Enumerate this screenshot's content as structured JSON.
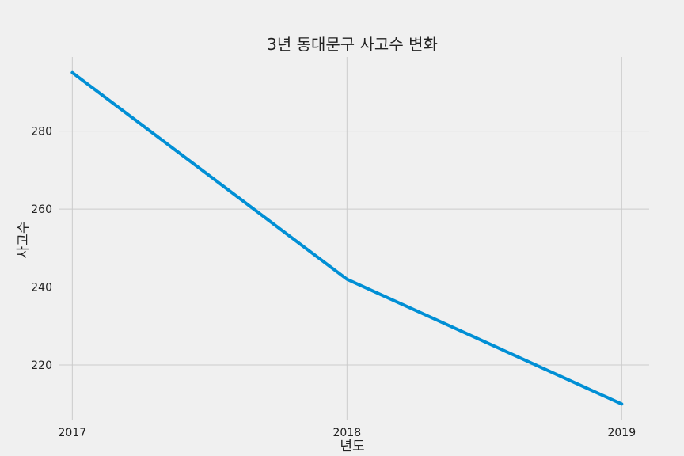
{
  "chart_data": {
    "type": "line",
    "title": "3년 동대문구 사고수 변화",
    "xlabel": "년도",
    "ylabel": "사고수",
    "x": [
      "2017",
      "2018",
      "2019"
    ],
    "series": [
      {
        "values": [
          295,
          242,
          210
        ]
      }
    ],
    "xlim": [
      2016.95,
      2019.1
    ],
    "ylim": [
      206,
      299
    ],
    "yticks": [
      220,
      240,
      260,
      280
    ],
    "grid": true,
    "line_color": "#008fd5",
    "background_color": "#f0f0f0",
    "grid_color": "#cbcbcb"
  }
}
